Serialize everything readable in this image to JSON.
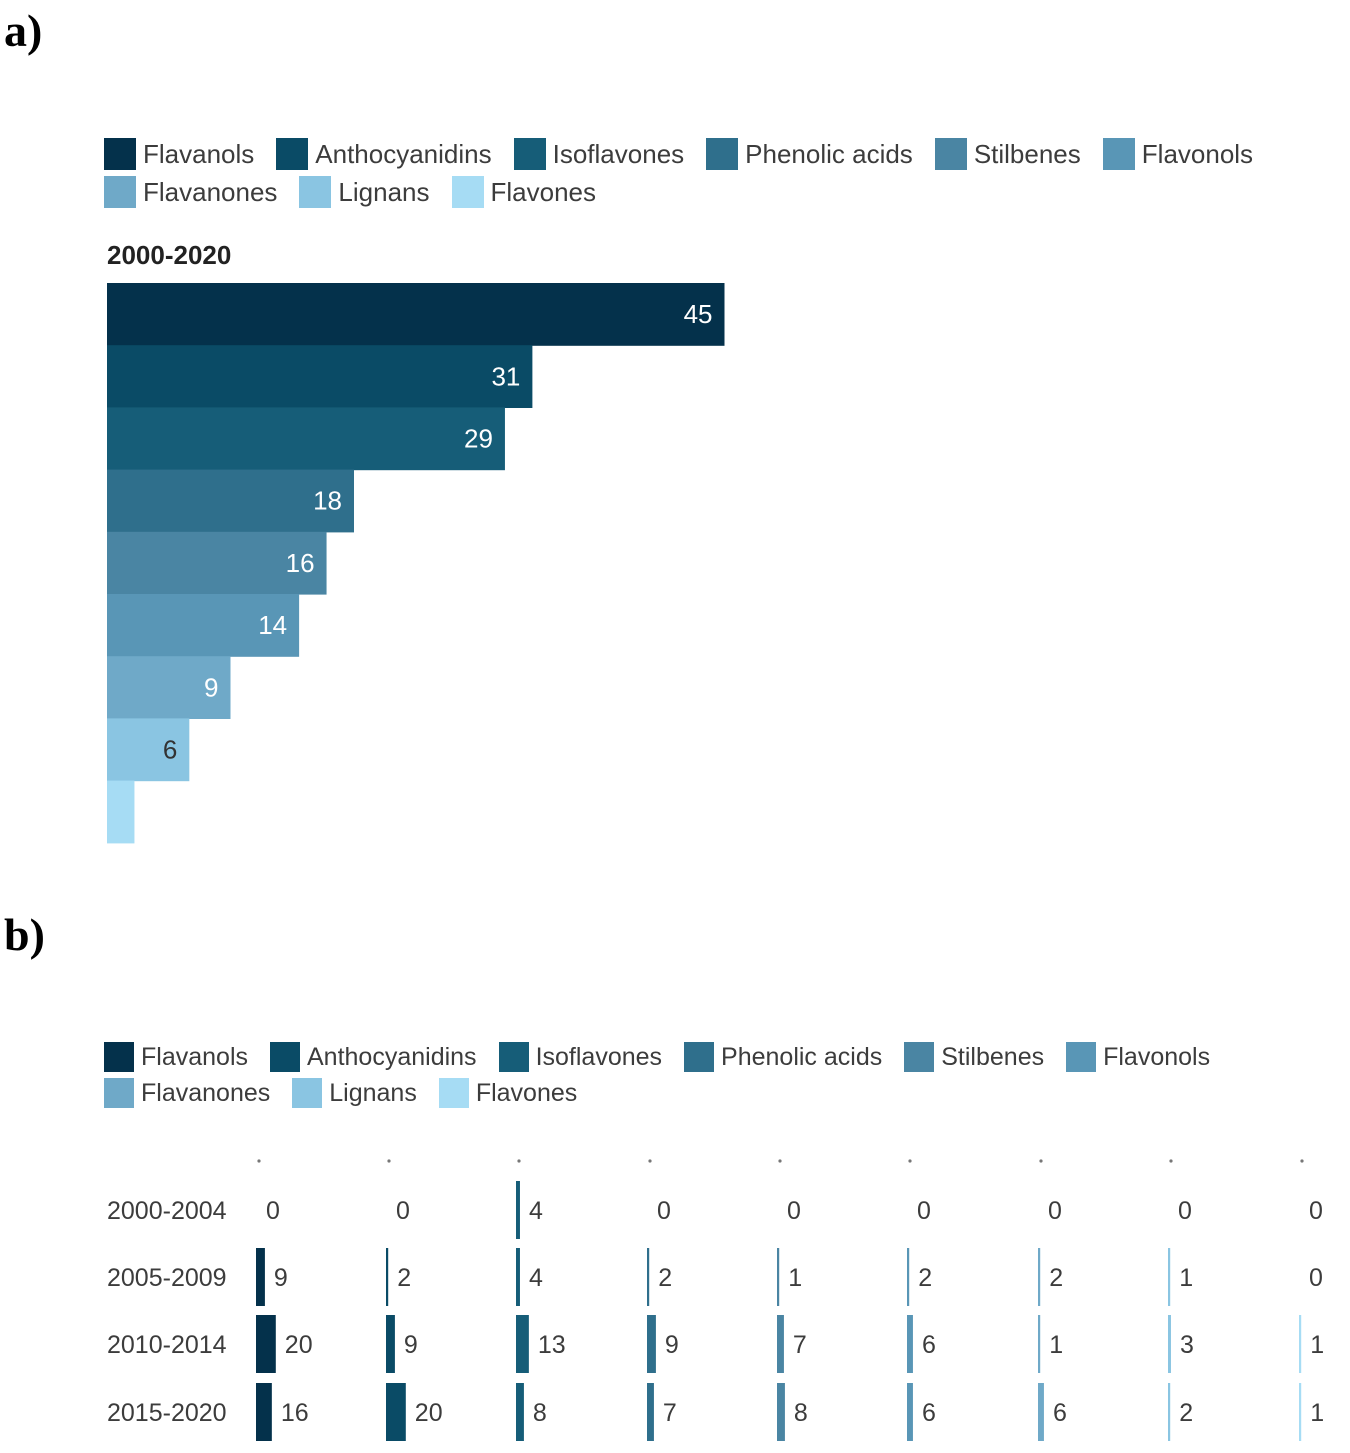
{
  "panel_a_label": "a)",
  "panel_b_label": "b)",
  "categories": [
    "Flavanols",
    "Anthocyanidins",
    "Isoflavones",
    "Phenolic acids",
    "Stilbenes",
    "Flavonols",
    "Flavanones",
    "Lignans",
    "Flavones"
  ],
  "colors": [
    "#04314b",
    "#0a4b66",
    "#165d78",
    "#2f6f8c",
    "#4a85a3",
    "#5996b6",
    "#6fa9c8",
    "#8ac5e2",
    "#a6dcf4"
  ],
  "chart_data": [
    {
      "type": "bar",
      "orientation": "horizontal",
      "title": "2000-2020",
      "categories": [
        "Flavanols",
        "Anthocyanidins",
        "Isoflavones",
        "Phenolic acids",
        "Stilbenes",
        "Flavonols",
        "Flavanones",
        "Lignans",
        "Flavones"
      ],
      "values": [
        45,
        31,
        29,
        18,
        16,
        14,
        9,
        6,
        2
      ],
      "data_labels": [
        "45",
        "31",
        "29",
        "18",
        "16",
        "14",
        "9",
        "6",
        ""
      ],
      "xlim": [
        0,
        45
      ],
      "legend_position": "top",
      "grid": false
    },
    {
      "type": "bar",
      "orientation": "horizontal",
      "layout": "small-multiples",
      "periods": [
        "2000-2004",
        "2005-2009",
        "2010-2014",
        "2015-2020"
      ],
      "series": [
        {
          "name": "Flavanols",
          "values": [
            0,
            9,
            20,
            16
          ]
        },
        {
          "name": "Anthocyanidins",
          "values": [
            0,
            2,
            9,
            20
          ]
        },
        {
          "name": "Isoflavones",
          "values": [
            4,
            4,
            13,
            8
          ]
        },
        {
          "name": "Phenolic acids",
          "values": [
            0,
            2,
            9,
            7
          ]
        },
        {
          "name": "Stilbenes",
          "values": [
            0,
            1,
            7,
            8
          ]
        },
        {
          "name": "Flavonols",
          "values": [
            0,
            2,
            6,
            6
          ]
        },
        {
          "name": "Flavanones",
          "values": [
            0,
            2,
            1,
            6
          ]
        },
        {
          "name": "Lignans",
          "values": [
            0,
            1,
            3,
            2
          ]
        },
        {
          "name": "Flavones",
          "values": [
            0,
            0,
            1,
            1
          ]
        }
      ],
      "xlim": [
        0,
        45
      ],
      "legend_position": "top",
      "grid": false
    }
  ]
}
